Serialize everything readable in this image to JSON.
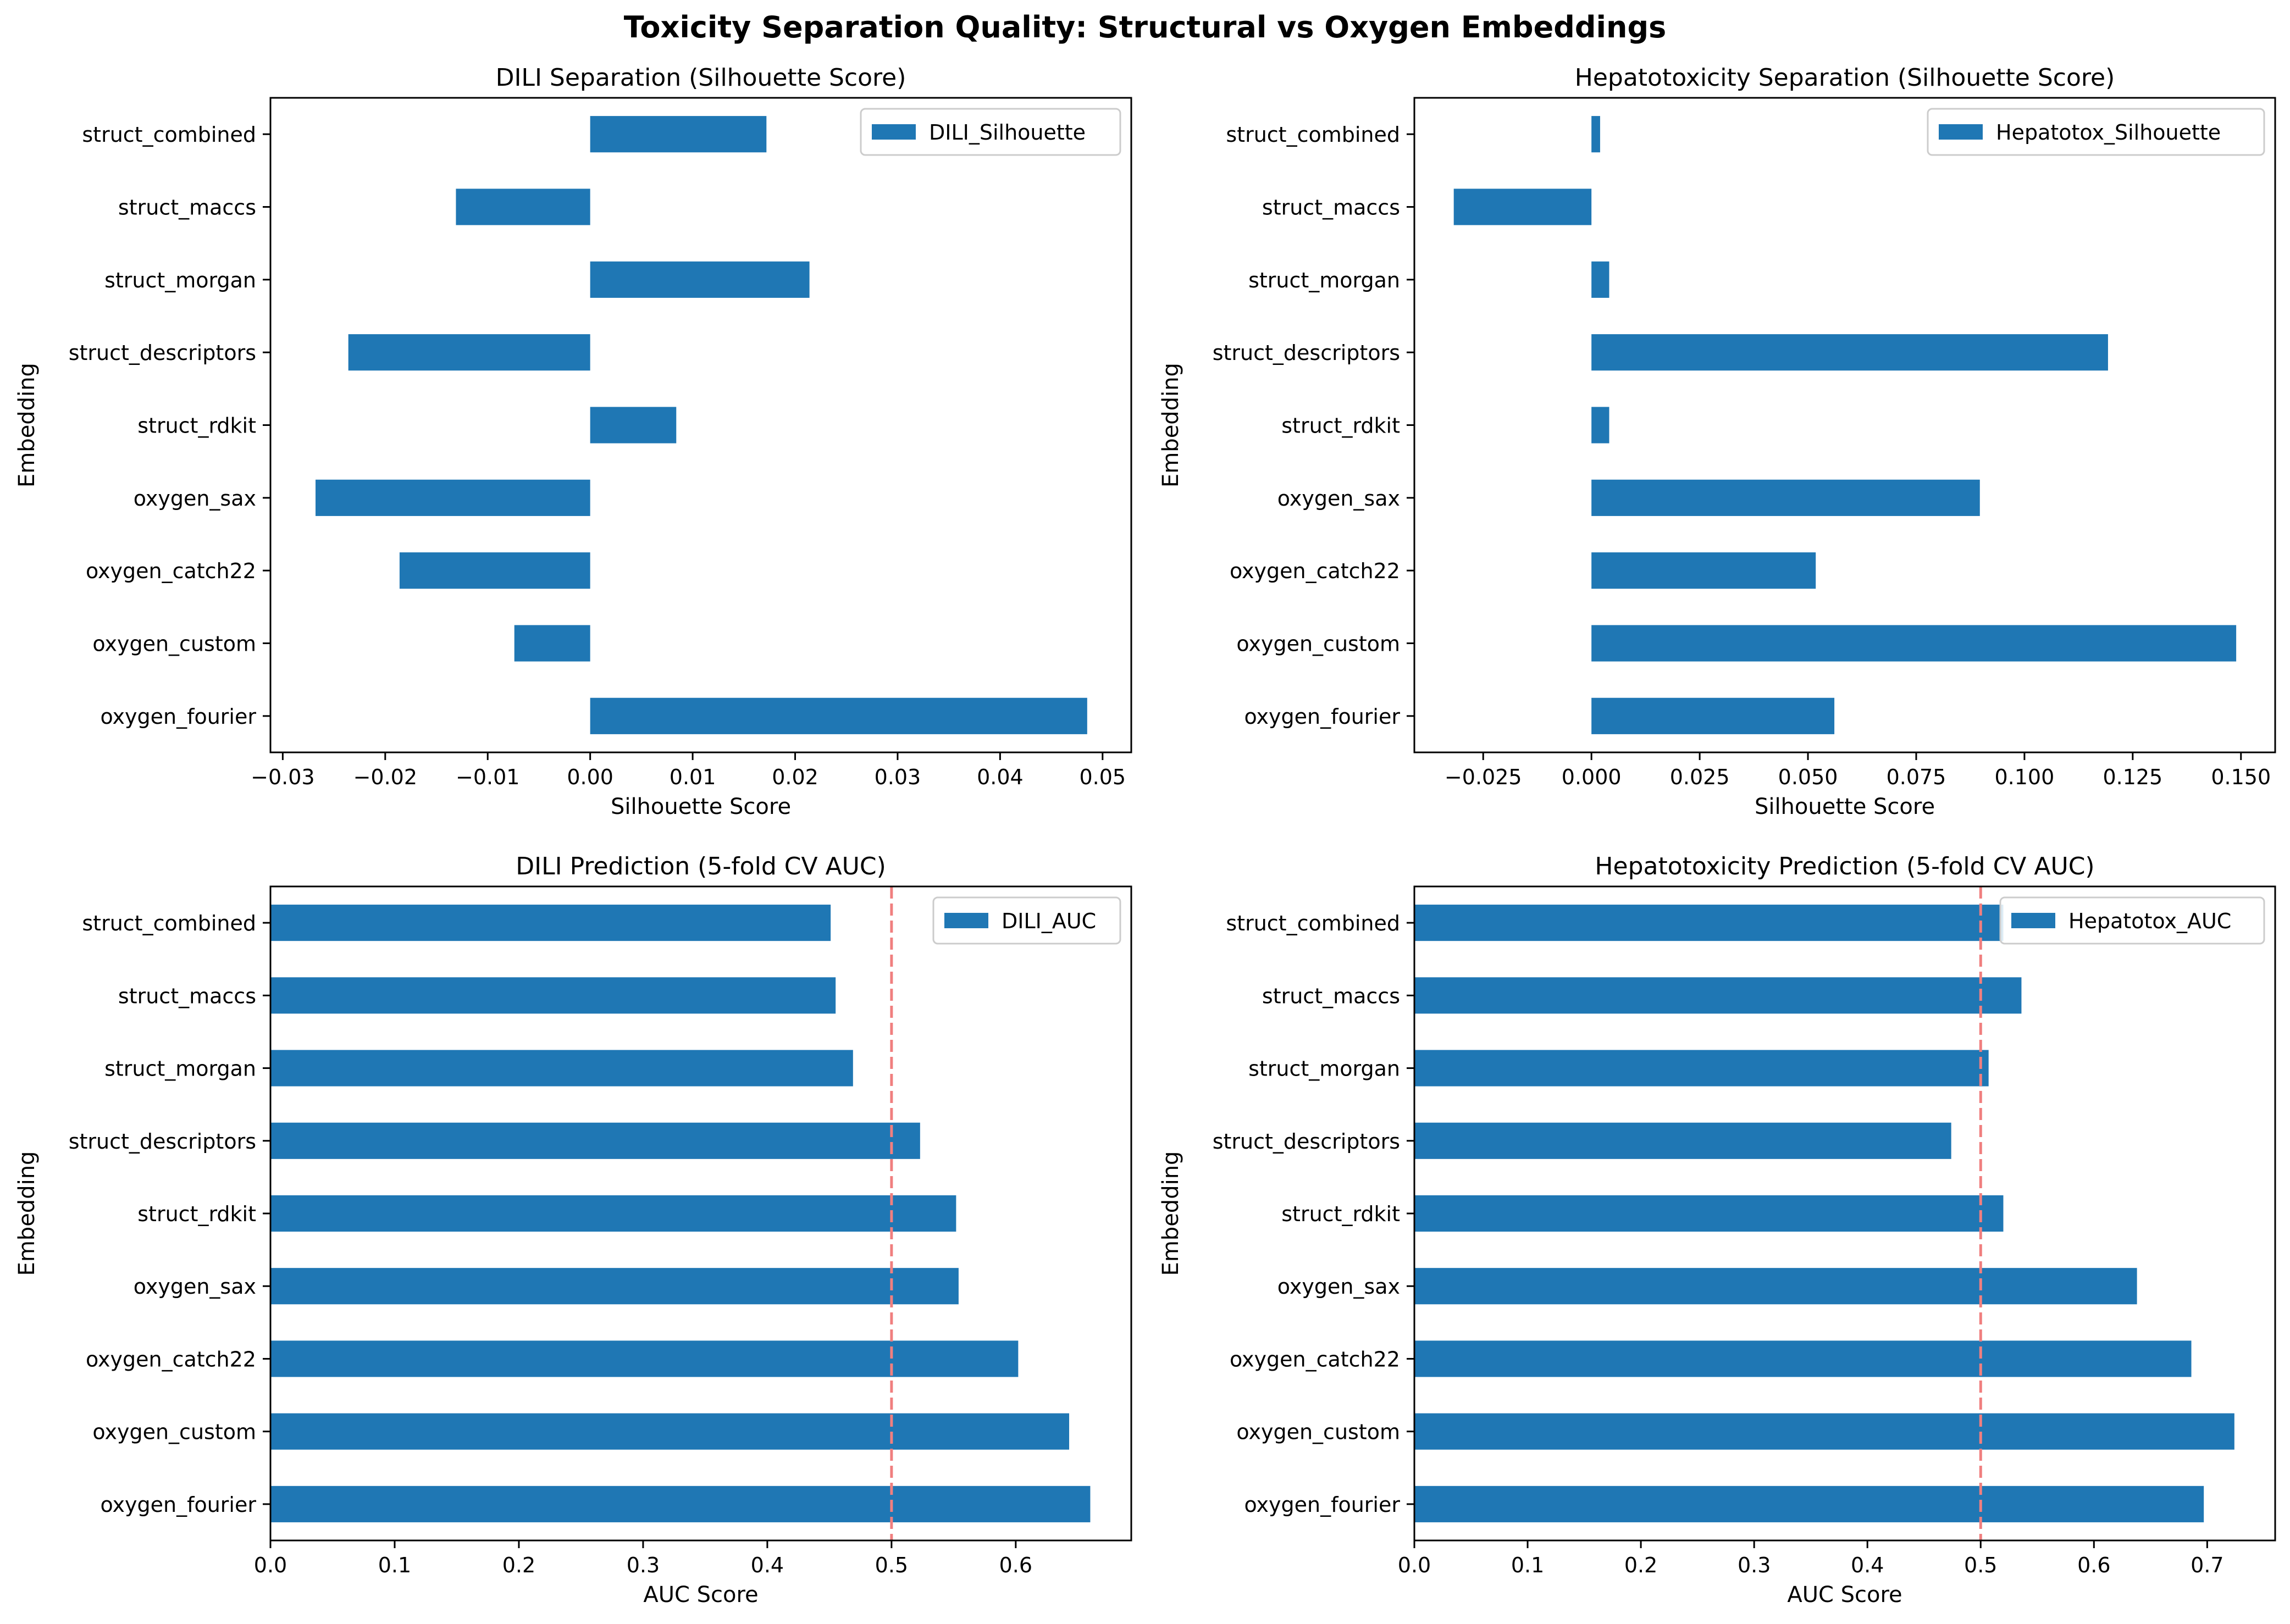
{
  "figure": {
    "title": "Toxicity Separation Quality: Structural vs Oxygen Embeddings"
  },
  "colors": {
    "bar": "#1f77b4",
    "reference_line": "#f07f7f",
    "axes": "#000000",
    "background": "#ffffff"
  },
  "chart_data": [
    {
      "id": "dili-silhouette",
      "type": "bar",
      "orientation": "horizontal",
      "title": "DILI Separation (Silhouette Score)",
      "xlabel": "Silhouette Score",
      "ylabel": "Embedding",
      "categories": [
        "struct_combined",
        "struct_maccs",
        "struct_morgan",
        "struct_descriptors",
        "struct_rdkit",
        "oxygen_sax",
        "oxygen_catch22",
        "oxygen_custom",
        "oxygen_fourier"
      ],
      "series": [
        {
          "name": "DILI_Silhouette",
          "values": [
            0.0172,
            -0.0131,
            0.0214,
            -0.0236,
            0.0084,
            -0.0268,
            -0.0186,
            -0.0074,
            0.0485
          ]
        }
      ],
      "xlim": [
        -0.0312,
        0.0528
      ],
      "xticks": [
        -0.03,
        -0.02,
        -0.01,
        0.0,
        0.01,
        0.02,
        0.03,
        0.04,
        0.05
      ],
      "xtick_labels": [
        "−0.03",
        "−0.02",
        "−0.01",
        "0.00",
        "0.01",
        "0.02",
        "0.03",
        "0.04",
        "0.05"
      ],
      "reference_line": null,
      "legend": "top-right",
      "grid": false
    },
    {
      "id": "hepatotox-silhouette",
      "type": "bar",
      "orientation": "horizontal",
      "title": "Hepatotoxicity Separation (Silhouette Score)",
      "xlabel": "Silhouette Score",
      "ylabel": "Embedding",
      "categories": [
        "struct_combined",
        "struct_maccs",
        "struct_morgan",
        "struct_descriptors",
        "struct_rdkit",
        "oxygen_sax",
        "oxygen_catch22",
        "oxygen_custom",
        "oxygen_fourier"
      ],
      "series": [
        {
          "name": "Hepatotox_Silhouette",
          "values": [
            0.002,
            -0.0318,
            0.0041,
            0.1193,
            0.0041,
            0.0897,
            0.0518,
            0.1489,
            0.0561
          ]
        }
      ],
      "xlim": [
        -0.0409,
        0.1579
      ],
      "xticks": [
        -0.025,
        0.0,
        0.025,
        0.05,
        0.075,
        0.1,
        0.125,
        0.15
      ],
      "xtick_labels": [
        "−0.025",
        "0.000",
        "0.025",
        "0.050",
        "0.075",
        "0.100",
        "0.125",
        "0.150"
      ],
      "reference_line": null,
      "legend": "top-right",
      "grid": false
    },
    {
      "id": "dili-auc",
      "type": "bar",
      "orientation": "horizontal",
      "title": "DILI Prediction (5-fold CV AUC)",
      "xlabel": "AUC Score",
      "ylabel": "Embedding",
      "categories": [
        "struct_combined",
        "struct_maccs",
        "struct_morgan",
        "struct_descriptors",
        "struct_rdkit",
        "oxygen_sax",
        "oxygen_catch22",
        "oxygen_custom",
        "oxygen_fourier"
      ],
      "series": [
        {
          "name": "DILI_AUC",
          "values": [
            0.451,
            0.455,
            0.469,
            0.523,
            0.552,
            0.554,
            0.602,
            0.643,
            0.66
          ]
        }
      ],
      "xlim": [
        0.0,
        0.693
      ],
      "xticks": [
        0.0,
        0.1,
        0.2,
        0.3,
        0.4,
        0.5,
        0.6
      ],
      "xtick_labels": [
        "0.0",
        "0.1",
        "0.2",
        "0.3",
        "0.4",
        "0.5",
        "0.6"
      ],
      "reference_line": 0.5,
      "legend": "top-right",
      "grid": false
    },
    {
      "id": "hepatotox-auc",
      "type": "bar",
      "orientation": "horizontal",
      "title": "Hepatotoxicity Prediction (5-fold CV AUC)",
      "xlabel": "AUC Score",
      "ylabel": "Embedding",
      "categories": [
        "struct_combined",
        "struct_maccs",
        "struct_morgan",
        "struct_descriptors",
        "struct_rdkit",
        "oxygen_sax",
        "oxygen_catch22",
        "oxygen_custom",
        "oxygen_fourier"
      ],
      "series": [
        {
          "name": "Hepatotox_AUC",
          "values": [
            0.52,
            0.536,
            0.507,
            0.474,
            0.52,
            0.638,
            0.686,
            0.724,
            0.697
          ]
        }
      ],
      "xlim": [
        0.0,
        0.76
      ],
      "xticks": [
        0.0,
        0.1,
        0.2,
        0.3,
        0.4,
        0.5,
        0.6,
        0.7
      ],
      "xtick_labels": [
        "0.0",
        "0.1",
        "0.2",
        "0.3",
        "0.4",
        "0.5",
        "0.6",
        "0.7"
      ],
      "reference_line": 0.5,
      "legend": "top-right",
      "grid": false
    }
  ]
}
